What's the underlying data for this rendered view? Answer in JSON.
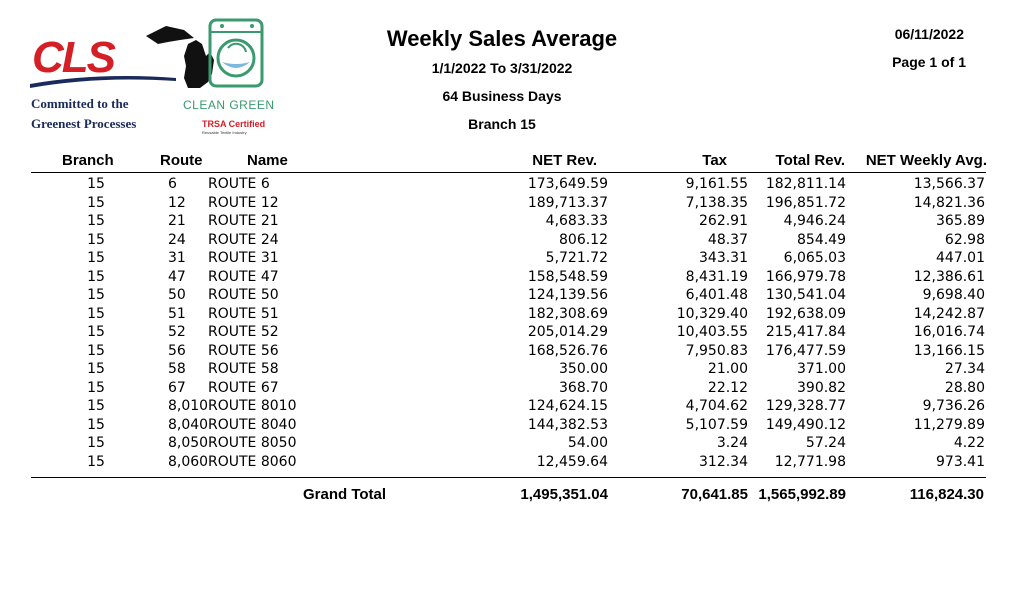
{
  "logo": {
    "brand": "CLS",
    "tagline_1": "Committed to the",
    "tagline_2": "Greenest Processes",
    "certification": "CLEAN GREEN",
    "cert_mark": "TRSA Certified",
    "cert_sub": "Reusable Textile Industry",
    "colors": {
      "red": "#d41f26",
      "navy": "#1a2a5a",
      "green": "#3a9a6e"
    }
  },
  "report": {
    "title": "Weekly Sales Average",
    "date_range": "1/1/2022  To 3/31/2022",
    "business_days": "64 Business Days",
    "branch": "Branch 15",
    "print_date": "06/11/2022",
    "page": "Page 1 of 1"
  },
  "columns": {
    "branch": "Branch",
    "route": "Route",
    "name": "Name",
    "net_rev": "NET Rev.",
    "tax": "Tax",
    "total_rev": "Total Rev.",
    "net_weekly_avg": "NET Weekly Avg."
  },
  "rows": [
    {
      "branch": "15",
      "route": "6",
      "name": "ROUTE 6",
      "net_rev": "173,649.59",
      "tax": "9,161.55",
      "total_rev": "182,811.14",
      "avg": "13,566.37"
    },
    {
      "branch": "15",
      "route": "12",
      "name": "ROUTE 12",
      "net_rev": "189,713.37",
      "tax": "7,138.35",
      "total_rev": "196,851.72",
      "avg": "14,821.36"
    },
    {
      "branch": "15",
      "route": "21",
      "name": "ROUTE 21",
      "net_rev": "4,683.33",
      "tax": "262.91",
      "total_rev": "4,946.24",
      "avg": "365.89"
    },
    {
      "branch": "15",
      "route": "24",
      "name": "ROUTE 24",
      "net_rev": "806.12",
      "tax": "48.37",
      "total_rev": "854.49",
      "avg": "62.98"
    },
    {
      "branch": "15",
      "route": "31",
      "name": "ROUTE 31",
      "net_rev": "5,721.72",
      "tax": "343.31",
      "total_rev": "6,065.03",
      "avg": "447.01"
    },
    {
      "branch": "15",
      "route": "47",
      "name": "ROUTE 47",
      "net_rev": "158,548.59",
      "tax": "8,431.19",
      "total_rev": "166,979.78",
      "avg": "12,386.61"
    },
    {
      "branch": "15",
      "route": "50",
      "name": "ROUTE 50",
      "net_rev": "124,139.56",
      "tax": "6,401.48",
      "total_rev": "130,541.04",
      "avg": "9,698.40"
    },
    {
      "branch": "15",
      "route": "51",
      "name": "ROUTE 51",
      "net_rev": "182,308.69",
      "tax": "10,329.40",
      "total_rev": "192,638.09",
      "avg": "14,242.87"
    },
    {
      "branch": "15",
      "route": "52",
      "name": "ROUTE 52",
      "net_rev": "205,014.29",
      "tax": "10,403.55",
      "total_rev": "215,417.84",
      "avg": "16,016.74"
    },
    {
      "branch": "15",
      "route": "56",
      "name": "ROUTE 56",
      "net_rev": "168,526.76",
      "tax": "7,950.83",
      "total_rev": "176,477.59",
      "avg": "13,166.15"
    },
    {
      "branch": "15",
      "route": "58",
      "name": "ROUTE 58",
      "net_rev": "350.00",
      "tax": "21.00",
      "total_rev": "371.00",
      "avg": "27.34"
    },
    {
      "branch": "15",
      "route": "67",
      "name": "ROUTE 67",
      "net_rev": "368.70",
      "tax": "22.12",
      "total_rev": "390.82",
      "avg": "28.80"
    },
    {
      "branch": "15",
      "route": "8,010",
      "name": "ROUTE 8010",
      "net_rev": "124,624.15",
      "tax": "4,704.62",
      "total_rev": "129,328.77",
      "avg": "9,736.26"
    },
    {
      "branch": "15",
      "route": "8,040",
      "name": "ROUTE 8040",
      "net_rev": "144,382.53",
      "tax": "5,107.59",
      "total_rev": "149,490.12",
      "avg": "11,279.89"
    },
    {
      "branch": "15",
      "route": "8,050",
      "name": "ROUTE 8050",
      "net_rev": "54.00",
      "tax": "3.24",
      "total_rev": "57.24",
      "avg": "4.22"
    },
    {
      "branch": "15",
      "route": "8,060",
      "name": "ROUTE 8060",
      "net_rev": "12,459.64",
      "tax": "312.34",
      "total_rev": "12,771.98",
      "avg": "973.41"
    }
  ],
  "totals": {
    "label": "Grand Total",
    "net_rev": "1,495,351.04",
    "tax": "70,641.85",
    "total_rev": "1,565,992.89",
    "avg": "116,824.30"
  }
}
